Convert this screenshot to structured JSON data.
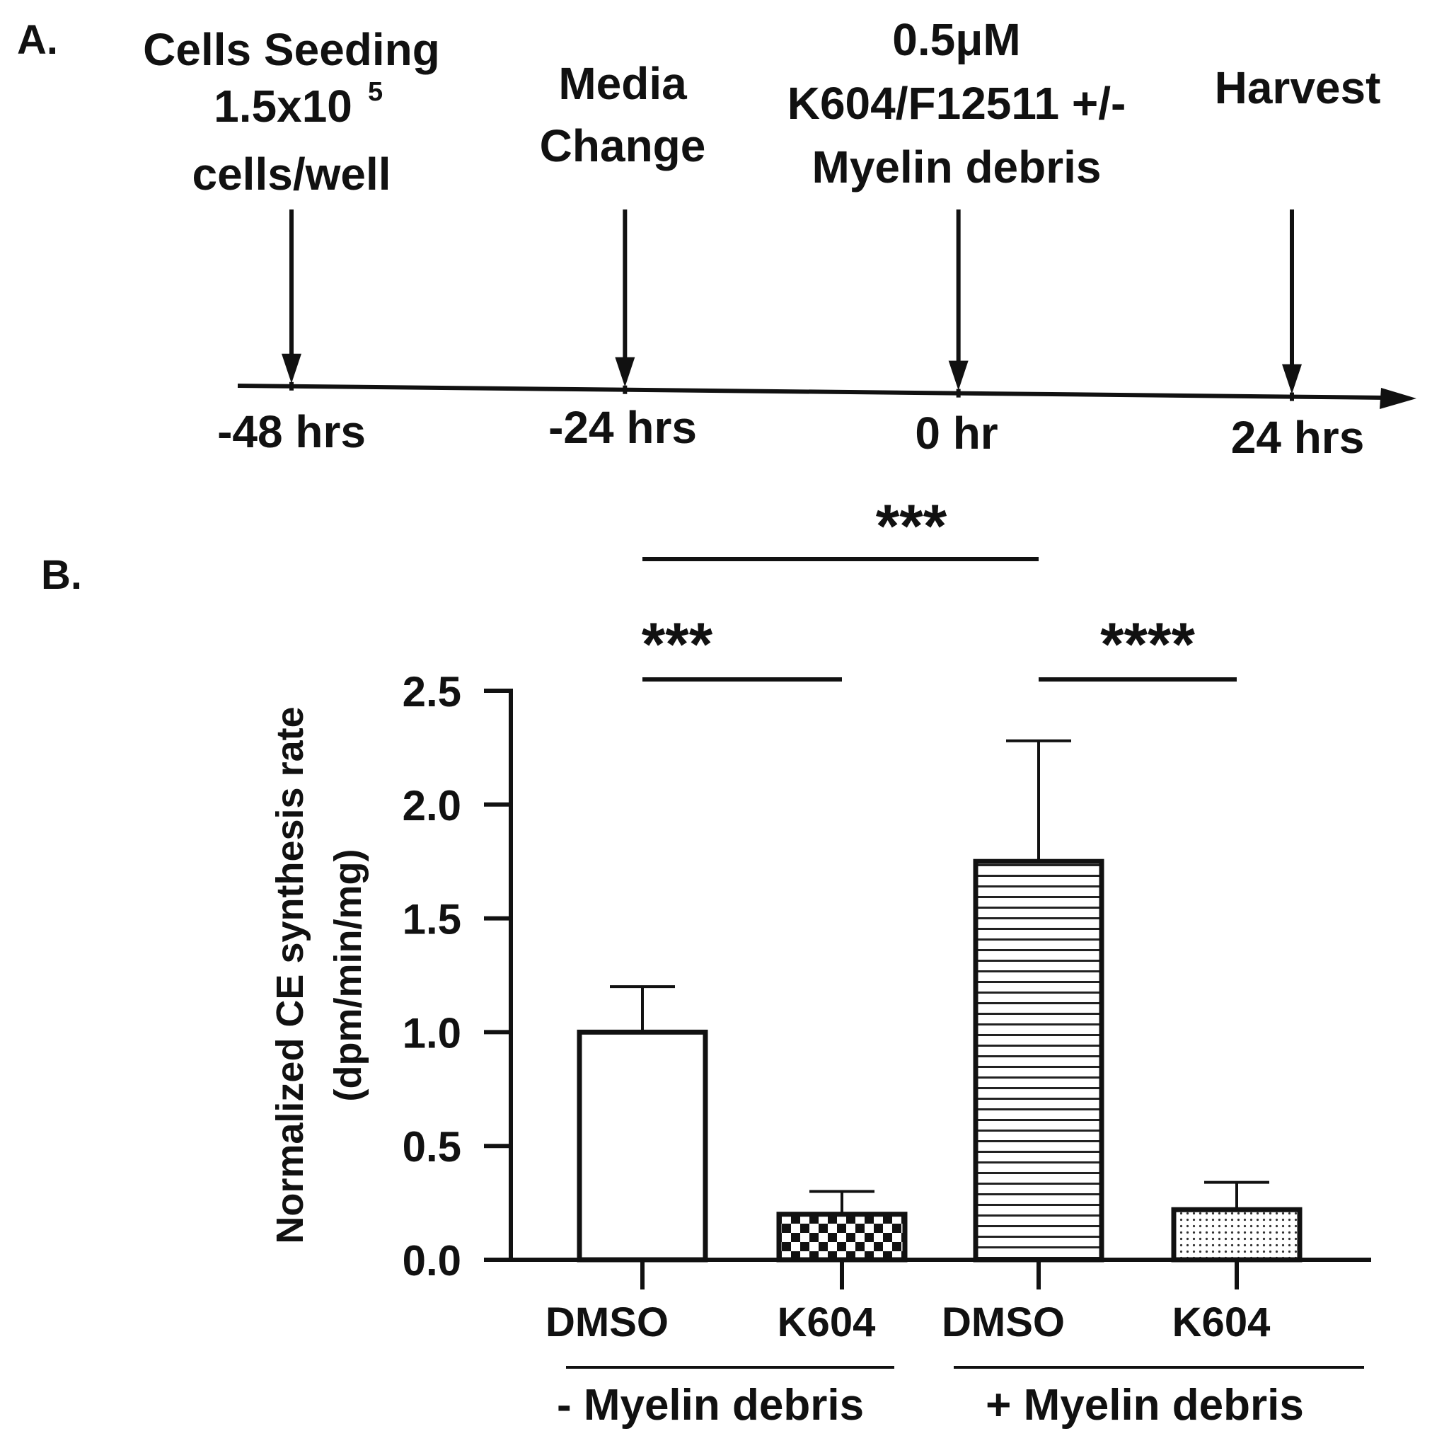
{
  "panel_a": {
    "label": "A.",
    "events": [
      {
        "lines": [
          "Cells Seeding",
          "1.5x10",
          "cells/well"
        ],
        "superscript": "5",
        "time_label": "-48 hrs",
        "time": -48
      },
      {
        "lines": [
          "Media",
          "Change"
        ],
        "time_label": "-24 hrs",
        "time": -24
      },
      {
        "lines": [
          "0.5μM",
          "K604/F12511 +/-",
          "Myelin debris"
        ],
        "time_label": "0 hr",
        "time": 0
      },
      {
        "lines": [
          "Harvest"
        ],
        "time_label": "24 hrs",
        "time": 24
      }
    ]
  },
  "panel_b": {
    "label": "B."
  },
  "chart_data": {
    "type": "bar",
    "ylabel_lines": [
      "Normalized CE synthesis rate",
      "(dpm/min/mg)"
    ],
    "ylim": [
      0,
      2.5
    ],
    "yticks": [
      "0.0",
      "0.5",
      "1.0",
      "1.5",
      "2.0",
      "2.5"
    ],
    "ytick_values": [
      0,
      0.5,
      1.0,
      1.5,
      2.0,
      2.5
    ],
    "categories": [
      "DMSO",
      "K604",
      "DMSO",
      "K604"
    ],
    "values": [
      1.0,
      0.2,
      1.75,
      0.22
    ],
    "errors": [
      0.2,
      0.1,
      0.53,
      0.12
    ],
    "fill_patterns": [
      "open",
      "checkerboard",
      "horizontal-stripes",
      "dots"
    ],
    "groups": [
      {
        "label": "- Myelin debris",
        "members": [
          0,
          1
        ]
      },
      {
        "label": "+ Myelin debris",
        "members": [
          2,
          3
        ]
      }
    ],
    "significance": [
      {
        "from": 0,
        "to": 1,
        "label": "***"
      },
      {
        "from": 2,
        "to": 3,
        "label": "****"
      },
      {
        "from": 0,
        "to": 2,
        "label": "***"
      }
    ],
    "grid": false,
    "legend": "none"
  }
}
